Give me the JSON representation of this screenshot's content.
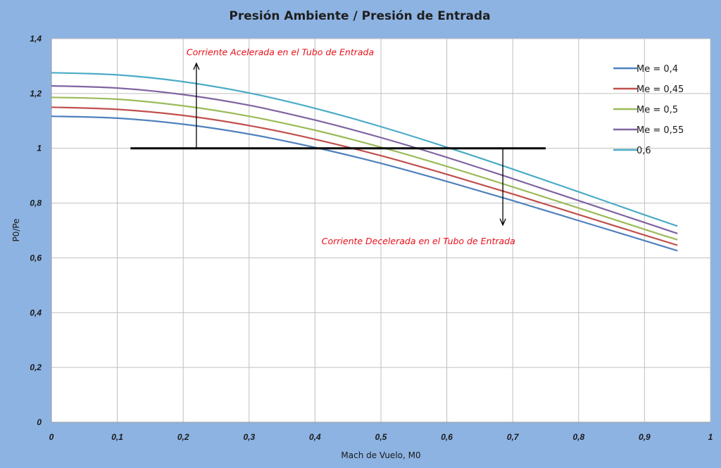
{
  "chart_data": {
    "type": "line",
    "title": "Presión Ambiente / Presión de Entrada",
    "xlabel": "Mach de Vuelo, M0",
    "ylabel": "P0/Pe",
    "xlim": [
      0,
      1
    ],
    "ylim": [
      0,
      1.4
    ],
    "xticks": [
      0,
      0.1,
      0.2,
      0.3,
      0.4,
      0.5,
      0.6,
      0.7,
      0.8,
      0.9,
      1
    ],
    "xtick_labels": [
      "0",
      "0,1",
      "0,2",
      "0,3",
      "0,4",
      "0,5",
      "0,6",
      "0,7",
      "0,8",
      "0,9",
      "1"
    ],
    "yticks": [
      0,
      0.2,
      0.4,
      0.6,
      0.8,
      1,
      1.2,
      1.4
    ],
    "ytick_labels": [
      "0",
      "0,2",
      "0,4",
      "0,6",
      "0,8",
      "1",
      "1,2",
      "1,4"
    ],
    "grid": true,
    "legend_position": "right",
    "x": [
      0,
      0.1,
      0.2,
      0.3,
      0.4,
      0.5,
      0.6,
      0.7,
      0.8,
      0.9,
      0.95
    ],
    "series": [
      {
        "name": "Me = 0,4",
        "color": "#4f81bd",
        "values": [
          1.117,
          1.11,
          1.088,
          1.052,
          1.003,
          0.945,
          0.879,
          0.809,
          0.736,
          0.663,
          0.626
        ]
      },
      {
        "name": "Me = 0,45",
        "color": "#c0504d",
        "values": [
          1.15,
          1.142,
          1.12,
          1.083,
          1.033,
          0.973,
          0.905,
          0.833,
          0.758,
          0.683,
          0.646
        ]
      },
      {
        "name": "Me = 0,5",
        "color": "#9bbb59",
        "values": [
          1.186,
          1.179,
          1.155,
          1.117,
          1.066,
          1.004,
          0.934,
          0.859,
          0.782,
          0.704,
          0.666
        ]
      },
      {
        "name": "Me = 0,55",
        "color": "#8064a2",
        "values": [
          1.228,
          1.22,
          1.196,
          1.157,
          1.103,
          1.039,
          0.967,
          0.889,
          0.809,
          0.729,
          0.689
        ]
      },
      {
        "name": "0,6",
        "color": "#4bacc6",
        "values": [
          1.276,
          1.268,
          1.243,
          1.202,
          1.146,
          1.079,
          1.004,
          0.924,
          0.841,
          0.757,
          0.716
        ]
      }
    ],
    "reference_line": {
      "y": 1,
      "x_start": 0.12,
      "x_end": 0.75,
      "color": "#000000"
    },
    "annotations": [
      {
        "text": "Corriente Acelerada en el Tubo de Entrada",
        "x": 0.205,
        "y": 1.35,
        "arrow": {
          "x": 0.22,
          "from_y": 1.0,
          "to_y": 1.31
        }
      },
      {
        "text": "Corriente Decelerada en el Tubo de Entrada",
        "x": 0.41,
        "y": 0.66,
        "arrow": {
          "x": 0.685,
          "from_y": 1.0,
          "to_y": 0.72
        }
      }
    ]
  }
}
